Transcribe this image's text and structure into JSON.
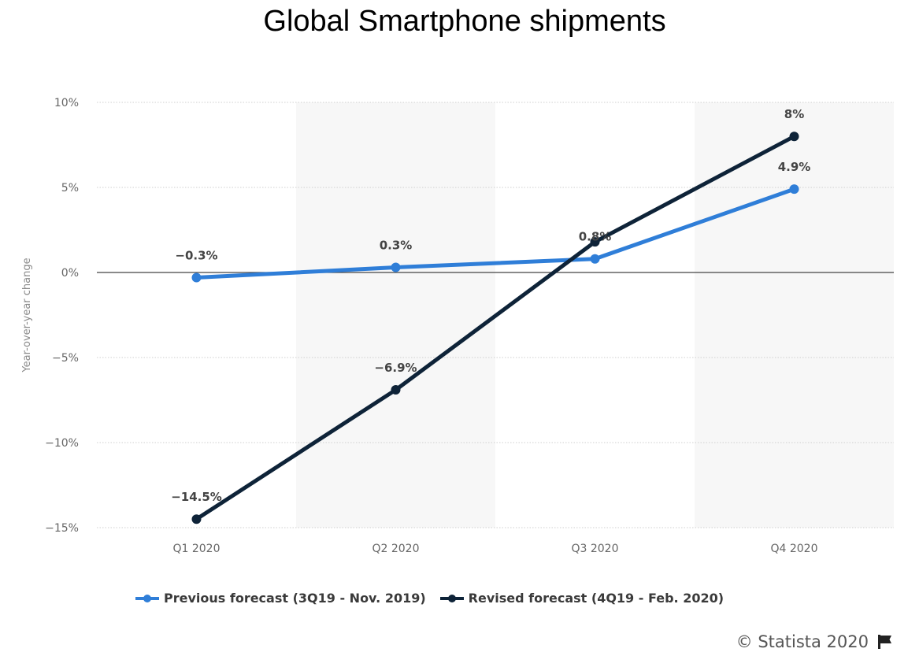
{
  "chart_data": {
    "type": "line",
    "title": "Global Smartphone shipments",
    "xlabel": "",
    "ylabel": "Year-over-year change",
    "categories": [
      "Q1 2020",
      "Q2 2020",
      "Q3 2020",
      "Q4 2020"
    ],
    "series": [
      {
        "name": "Previous forecast (3Q19 - Nov. 2019)",
        "color": "#2f7ed8",
        "values": [
          -0.3,
          0.3,
          0.8,
          4.9
        ],
        "labels": [
          "-0.3%",
          "0.3%",
          "0.8%",
          "4.9%"
        ]
      },
      {
        "name": "Revised forecast (4Q19 - Feb. 2020)",
        "color": "#0e2338",
        "values": [
          -14.5,
          -6.9,
          1.8,
          8
        ],
        "labels": [
          "-14.5%",
          "-6.9%",
          "",
          "8%"
        ]
      }
    ],
    "ylim": [
      -15,
      10
    ],
    "yticks": [
      10,
      5,
      0,
      -5,
      -10,
      -15
    ],
    "ytick_labels": [
      "10%",
      "5%",
      "0%",
      "−5%",
      "−10%",
      "−15%"
    ],
    "grid": true,
    "legend_position": "bottom"
  },
  "credit": "© Statista 2020",
  "icons": {
    "credit_icon": "flag-icon"
  }
}
